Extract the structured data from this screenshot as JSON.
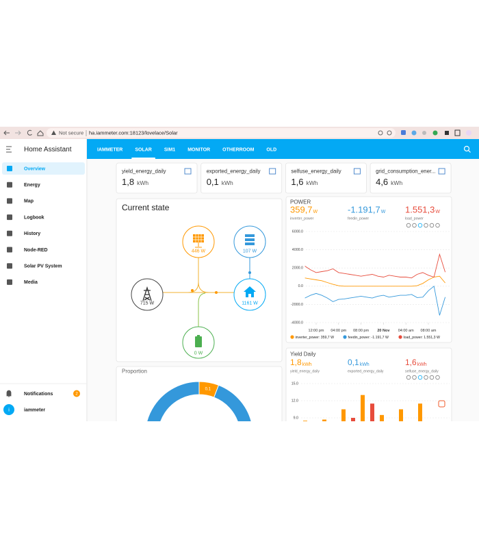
{
  "browser": {
    "not_secure": "Not secure",
    "url": "ha.iammeter.com:18123/lovelace/Solar"
  },
  "sidebar": {
    "title": "Home Assistant",
    "items": [
      "Overview",
      "Energy",
      "Map",
      "Logbook",
      "History",
      "Node-RED",
      "Solar PV System",
      "Media"
    ],
    "selected": 0,
    "notifications": "Notifications",
    "notification_count": "2",
    "user": "iammeter",
    "user_initial": "i"
  },
  "tabs": {
    "items": [
      "IAMMETER",
      "SOLAR",
      "SIM1",
      "MONITOR",
      "OTHERROOM",
      "OLD"
    ],
    "selected": 1
  },
  "entities": [
    {
      "name": "yield_energy_daily",
      "value": "1,8",
      "unit": "kWh"
    },
    {
      "name": "exported_energy_daily",
      "value": "0,1",
      "unit": "kWh"
    },
    {
      "name": "selfuse_energy_daily",
      "value": "1,6",
      "unit": "kWh"
    },
    {
      "name": "grid_consumption_ener...",
      "value": "4,6",
      "unit": "kWh"
    }
  ],
  "current_state": {
    "title": "Current state",
    "nodes": {
      "solar": "446 W",
      "server": "107 W",
      "grid": "715 W",
      "home": "1161 W",
      "battery": "0 W"
    }
  },
  "chart_data": [
    {
      "type": "line",
      "title": "POWER",
      "header": [
        {
          "value": "359,7",
          "unit": "W",
          "name": "inverter_power",
          "color": "#ff9800"
        },
        {
          "value": "-1.191,7",
          "unit": "W",
          "name": "feedin_power",
          "color": "#3498db"
        },
        {
          "value": "1.551,3",
          "unit": "W",
          "name": "load_power",
          "color": "#e74c3c"
        }
      ],
      "xlim": [
        0,
        25
      ],
      "xticks": [
        {
          "value": 2,
          "label": "12:00 pm"
        },
        {
          "value": 6,
          "label": "04:00 pm"
        },
        {
          "value": 10,
          "label": "08:00 pm"
        },
        {
          "value": 14,
          "label": "20 Nov"
        },
        {
          "value": 18,
          "label": "04:00 am"
        },
        {
          "value": 22,
          "label": "08:00 am"
        }
      ],
      "ylim": [
        -4000,
        6000
      ],
      "yticks": [
        {
          "value": 6000,
          "label": "6000.0"
        },
        {
          "value": 4000,
          "label": "4000.0"
        },
        {
          "value": 2000,
          "label": "2000.0"
        },
        {
          "value": 0,
          "label": "0.0"
        },
        {
          "value": -2000,
          "label": "-2000.0"
        },
        {
          "value": -4000,
          "label": "-4000.0"
        }
      ],
      "grid": true,
      "series": [
        {
          "name": "inverter_power: 359,7 W",
          "color": "#ff9800",
          "values": [
            900,
            800,
            700,
            600,
            400,
            200,
            50,
            0,
            0,
            0,
            0,
            0,
            0,
            0,
            0,
            0,
            0,
            0,
            0,
            0,
            50,
            300,
            700,
            1000,
            1100,
            360
          ]
        },
        {
          "name": "feedin_power: -1.191,7 W",
          "color": "#3498db",
          "values": [
            -1300,
            -1000,
            -800,
            -1000,
            -1300,
            -1700,
            -1450,
            -1400,
            -1300,
            -1200,
            -1100,
            -1200,
            -1300,
            -1100,
            -1000,
            -1200,
            -1100,
            -1000,
            -1000,
            -900,
            -1250,
            -1200,
            -500,
            0,
            -3200,
            -1192
          ]
        },
        {
          "name": "load_power: 1.551,3 W",
          "color": "#e74c3c",
          "values": [
            2200,
            1800,
            1500,
            1600,
            1700,
            1900,
            1500,
            1400,
            1300,
            1200,
            1100,
            1200,
            1300,
            1100,
            1000,
            1200,
            1100,
            1000,
            1000,
            900,
            1300,
            1500,
            1200,
            1000,
            3500,
            1551
          ]
        }
      ]
    },
    {
      "type": "bar",
      "title": "Yield Daily",
      "header": [
        {
          "value": "1,8",
          "unit": "kWh",
          "name": "yield_energy_daily",
          "color": "#ff9800"
        },
        {
          "value": "0,1",
          "unit": "kWh",
          "name": "exported_energy_daily",
          "color": "#3498db"
        },
        {
          "value": "1,6",
          "unit": "kWh",
          "name": "selfuse_energy_daily",
          "color": "#e74c3c"
        }
      ],
      "categories": [
        null,
        null,
        null,
        null,
        null,
        null,
        null,
        null
      ],
      "ylim": [
        0,
        15
      ],
      "yticks": [
        {
          "value": 15,
          "label": "15.0"
        },
        {
          "value": 12,
          "label": "12.0"
        },
        {
          "value": 9,
          "label": "9.0"
        }
      ],
      "grid": true,
      "series": [
        {
          "color": "#ff9800",
          "values": [
            8.5,
            8.7,
            10.5,
            13,
            9.5,
            10.5,
            11.5,
            null
          ]
        },
        {
          "color": "#e74c3c",
          "values": [
            null,
            null,
            9,
            11.5,
            null,
            null,
            null,
            null
          ]
        }
      ]
    },
    {
      "type": "pie",
      "title": "Proportion",
      "values": [
        0.1,
        1.6
      ],
      "value_labels": [
        "0.1",
        null
      ],
      "colors": [
        "#ff9800",
        "#3498db"
      ]
    }
  ]
}
